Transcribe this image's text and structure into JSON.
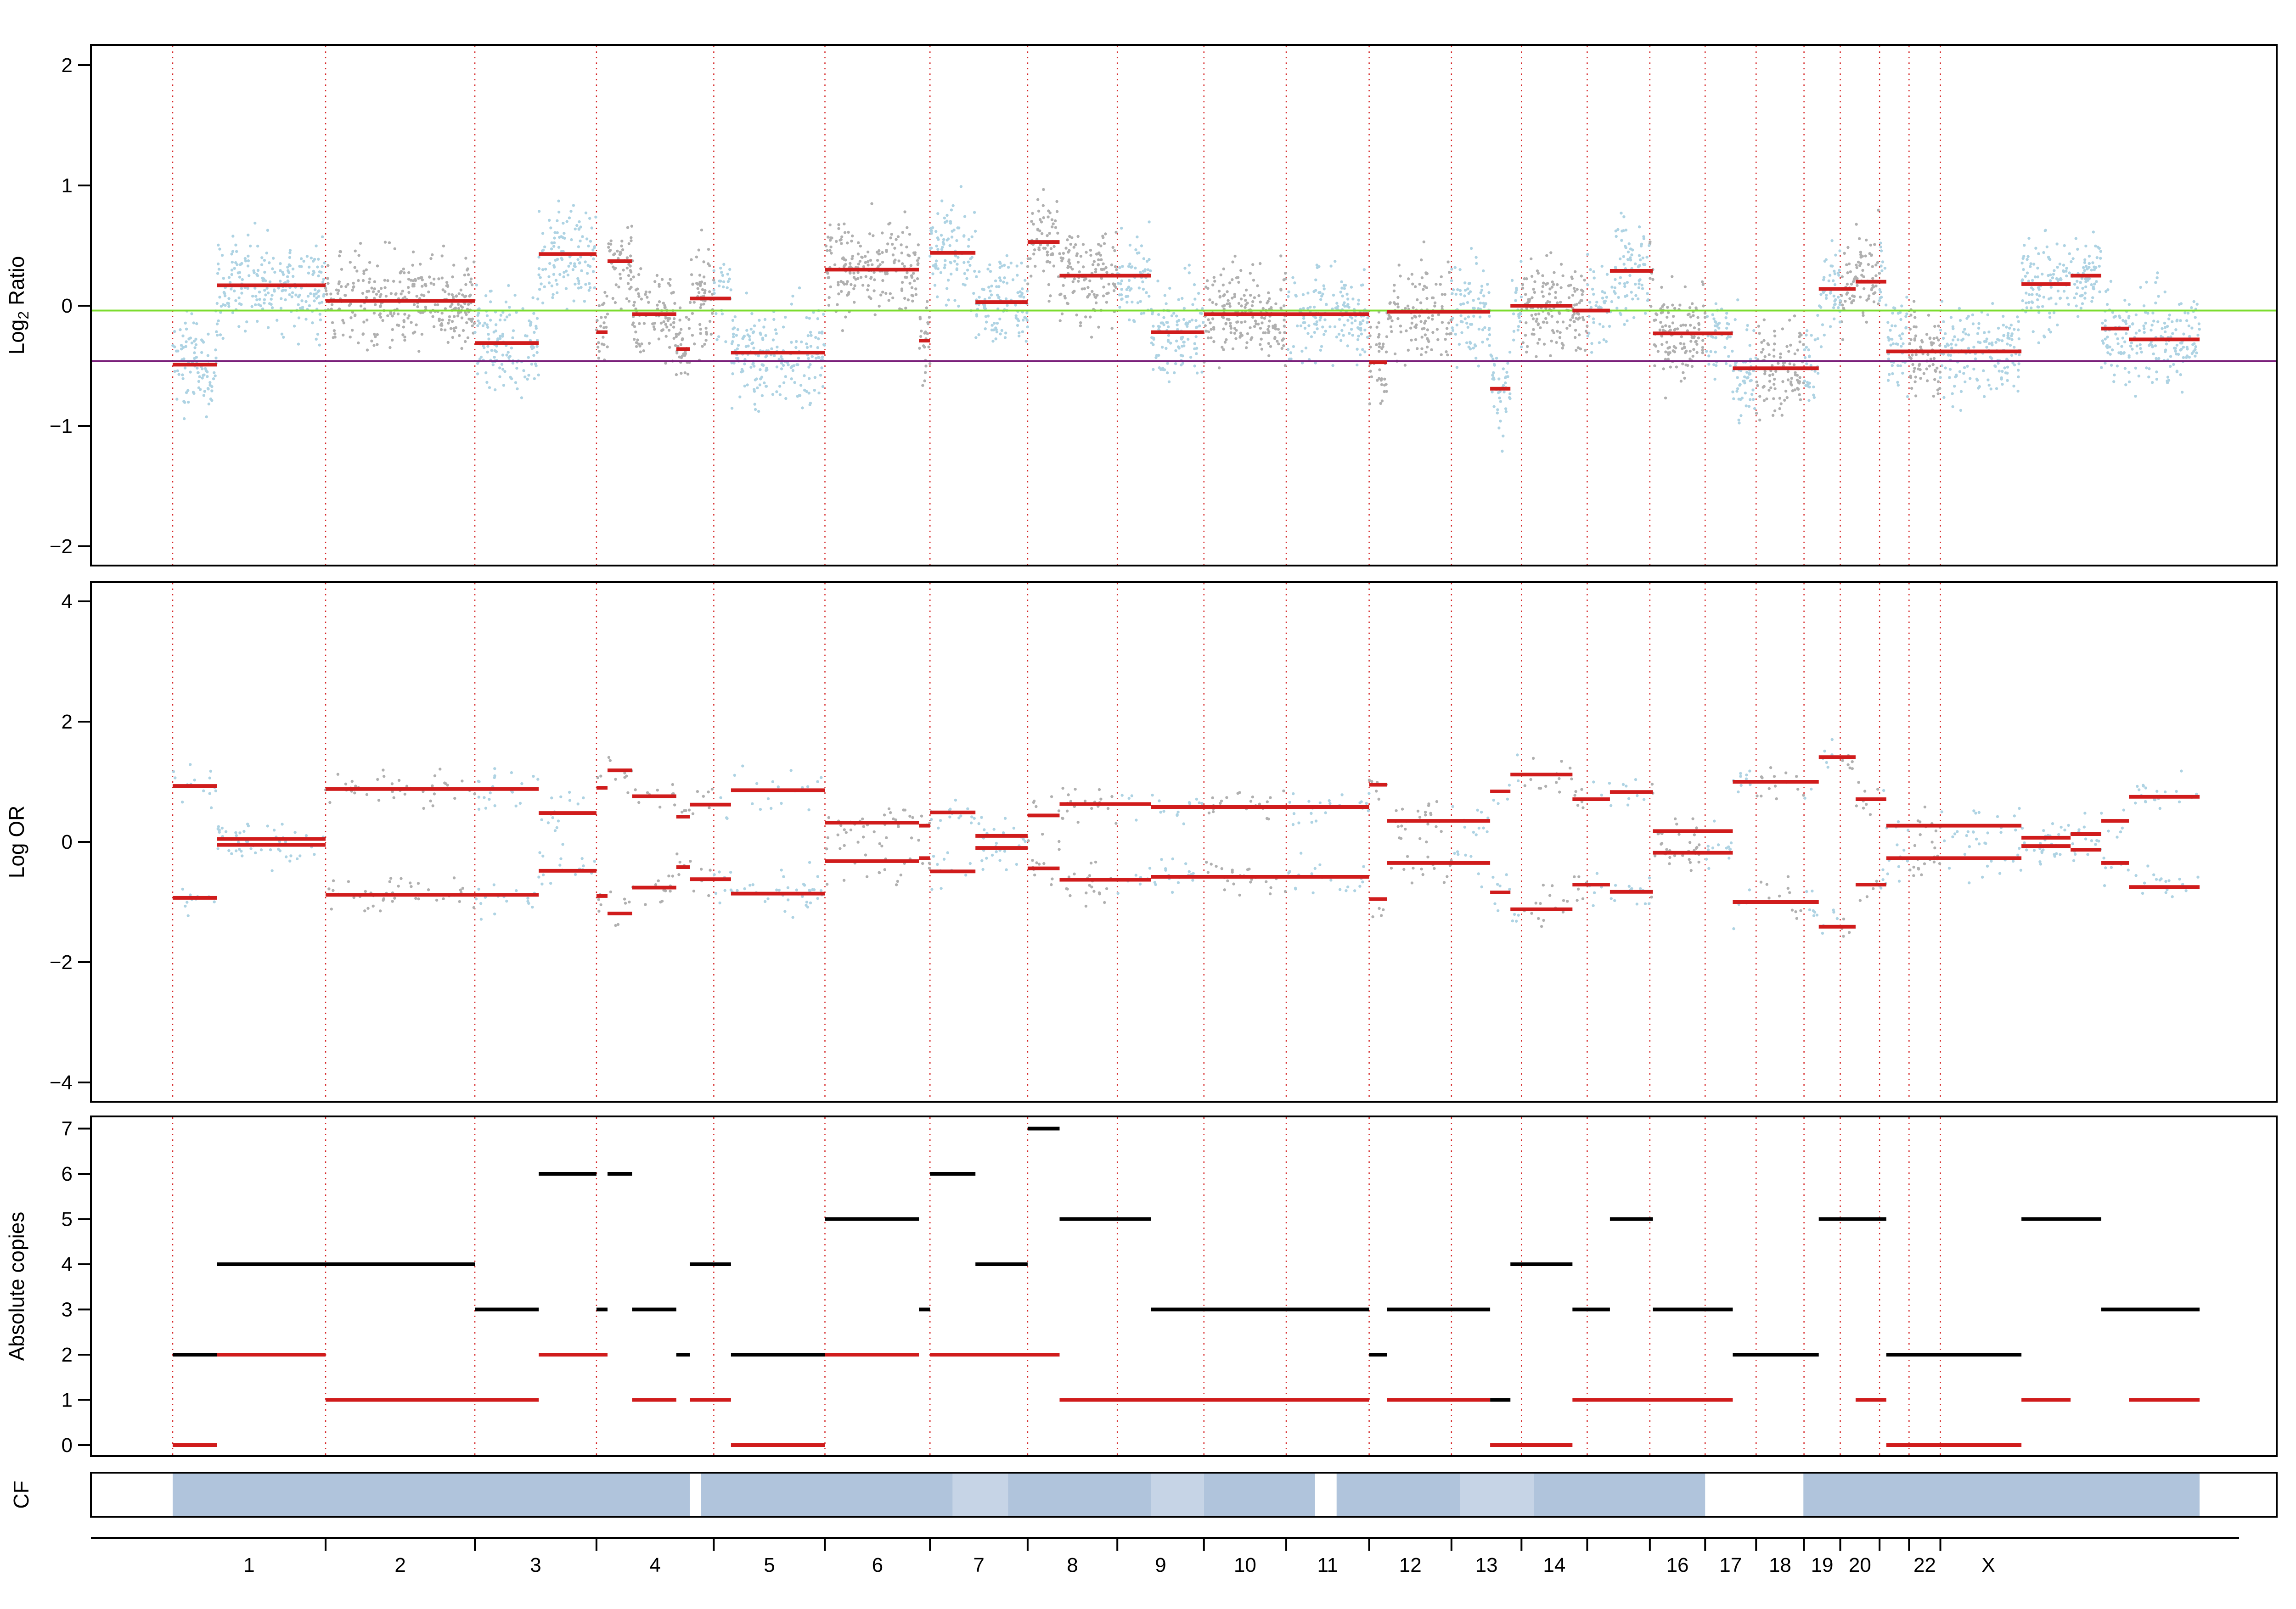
{
  "colors": {
    "point_even": "#aed3e3",
    "point_odd": "#b0b0b0",
    "segment": "#d01c1c",
    "copy_total": "#000000",
    "copy_minor": "#d01c1c",
    "purity_line": "#7cdc2e",
    "ploidy_line": "#7a1f7a",
    "cf_dark": "#b0c4dc",
    "cf_light": "#c6d4e6",
    "boundary": "#d62728"
  },
  "panels": [
    {
      "name": "Log2 Ratio",
      "ylabel_main": "Log",
      "ylabel_sub": "2",
      "ylabel_rest": " Ratio",
      "ylim": [
        -2.1,
        2.1
      ],
      "yticks": [
        "−2",
        "−1",
        "0",
        "1",
        "2"
      ]
    },
    {
      "name": "Log OR",
      "ylabel": "Log OR",
      "ylim": [
        -4.2,
        4.2
      ],
      "yticks": [
        "−4",
        "−2",
        "0",
        "2",
        "4"
      ]
    },
    {
      "name": "Absolute copies",
      "ylabel": "Absolute copies",
      "ylim": [
        -0.3,
        7.3
      ],
      "yticks": [
        "0",
        "1",
        "2",
        "3",
        "4",
        "5",
        "6",
        "7"
      ]
    },
    {
      "name": "CF",
      "ylabel": "CF"
    }
  ],
  "chart_data": {
    "type": "scatter",
    "x_unit": "chromosome position (Mb)",
    "chromosomes": [
      {
        "chrom": "1",
        "label": "1",
        "start": 0,
        "end": 249
      },
      {
        "chrom": "2",
        "label": "2",
        "start": 249,
        "end": 492
      },
      {
        "chrom": "3",
        "label": "3",
        "start": 492,
        "end": 690
      },
      {
        "chrom": "4",
        "label": "4",
        "start": 690,
        "end": 881
      },
      {
        "chrom": "5",
        "label": "5",
        "start": 881,
        "end": 1062
      },
      {
        "chrom": "6",
        "label": "6",
        "start": 1062,
        "end": 1233
      },
      {
        "chrom": "7",
        "label": "7",
        "start": 1233,
        "end": 1392
      },
      {
        "chrom": "8",
        "label": "8",
        "start": 1392,
        "end": 1538
      },
      {
        "chrom": "9",
        "label": "9",
        "start": 1538,
        "end": 1679
      },
      {
        "chrom": "10",
        "label": "10",
        "start": 1679,
        "end": 1813
      },
      {
        "chrom": "11",
        "label": "11",
        "start": 1813,
        "end": 1948
      },
      {
        "chrom": "12",
        "label": "12",
        "start": 1948,
        "end": 2082
      },
      {
        "chrom": "13",
        "label": "13",
        "start": 2082,
        "end": 2196
      },
      {
        "chrom": "14",
        "label": "14",
        "start": 2196,
        "end": 2303
      },
      {
        "chrom": "15",
        "label": "",
        "start": 2303,
        "end": 2405
      },
      {
        "chrom": "16",
        "label": "16",
        "start": 2405,
        "end": 2495
      },
      {
        "chrom": "17",
        "label": "17",
        "start": 2495,
        "end": 2578
      },
      {
        "chrom": "18",
        "label": "18",
        "start": 2578,
        "end": 2656
      },
      {
        "chrom": "19",
        "label": "19",
        "start": 2656,
        "end": 2715
      },
      {
        "chrom": "20",
        "label": "20",
        "start": 2715,
        "end": 2779
      },
      {
        "chrom": "21",
        "label": "",
        "start": 2779,
        "end": 2827
      },
      {
        "chrom": "22",
        "label": "22",
        "start": 2827,
        "end": 2878
      },
      {
        "chrom": "X",
        "label": "X",
        "start": 2878,
        "end": 3034
      }
    ],
    "log2_ratio": {
      "purity_line": -0.04,
      "ploidy_line": -0.46,
      "segments": [
        {
          "start": 0,
          "end": 72,
          "y": -0.49
        },
        {
          "start": 72,
          "end": 249,
          "y": 0.17
        },
        {
          "start": 249,
          "end": 492,
          "y": 0.04
        },
        {
          "start": 492,
          "end": 596,
          "y": -0.31
        },
        {
          "start": 596,
          "end": 690,
          "y": 0.43
        },
        {
          "start": 690,
          "end": 708,
          "y": -0.22
        },
        {
          "start": 708,
          "end": 748,
          "y": 0.37
        },
        {
          "start": 748,
          "end": 820,
          "y": -0.07
        },
        {
          "start": 820,
          "end": 842,
          "y": -0.36
        },
        {
          "start": 842,
          "end": 909,
          "y": 0.06
        },
        {
          "start": 909,
          "end": 1062,
          "y": -0.39
        },
        {
          "start": 1062,
          "end": 1215,
          "y": 0.3
        },
        {
          "start": 1215,
          "end": 1233,
          "y": -0.29
        },
        {
          "start": 1233,
          "end": 1307,
          "y": 0.44
        },
        {
          "start": 1307,
          "end": 1392,
          "y": 0.03
        },
        {
          "start": 1392,
          "end": 1444,
          "y": 0.53
        },
        {
          "start": 1444,
          "end": 1593,
          "y": 0.25
        },
        {
          "start": 1593,
          "end": 1679,
          "y": -0.22
        },
        {
          "start": 1679,
          "end": 1948,
          "y": -0.07
        },
        {
          "start": 1948,
          "end": 1977,
          "y": -0.47
        },
        {
          "start": 1977,
          "end": 2145,
          "y": -0.05
        },
        {
          "start": 2145,
          "end": 2178,
          "y": -0.69
        },
        {
          "start": 2178,
          "end": 2279,
          "y": 0.0
        },
        {
          "start": 2279,
          "end": 2340,
          "y": -0.04
        },
        {
          "start": 2340,
          "end": 2410,
          "y": 0.29
        },
        {
          "start": 2410,
          "end": 2540,
          "y": -0.23
        },
        {
          "start": 2540,
          "end": 2680,
          "y": -0.52
        },
        {
          "start": 2680,
          "end": 2740,
          "y": 0.14
        },
        {
          "start": 2740,
          "end": 2790,
          "y": 0.2
        },
        {
          "start": 2790,
          "end": 3010,
          "y": -0.38
        },
        {
          "start": 3010,
          "end": 3090,
          "y": 0.18
        },
        {
          "start": 3090,
          "end": 3140,
          "y": 0.25
        },
        {
          "start": 3140,
          "end": 3185,
          "y": -0.19
        },
        {
          "start": 3185,
          "end": 3300,
          "y": -0.28
        }
      ]
    },
    "log_or": {
      "segments": [
        {
          "start": 0,
          "end": 72,
          "y": 0.93
        },
        {
          "start": 72,
          "end": 249,
          "y": 0.05
        },
        {
          "start": 249,
          "end": 596,
          "y": 0.88
        },
        {
          "start": 596,
          "end": 690,
          "y": 0.48
        },
        {
          "start": 690,
          "end": 708,
          "y": 0.9
        },
        {
          "start": 708,
          "end": 748,
          "y": 1.19
        },
        {
          "start": 748,
          "end": 820,
          "y": 0.76
        },
        {
          "start": 820,
          "end": 842,
          "y": 0.42
        },
        {
          "start": 842,
          "end": 909,
          "y": 0.62
        },
        {
          "start": 909,
          "end": 1062,
          "y": 0.86
        },
        {
          "start": 1062,
          "end": 1215,
          "y": 0.32
        },
        {
          "start": 1215,
          "end": 1233,
          "y": 0.27
        },
        {
          "start": 1233,
          "end": 1307,
          "y": 0.49
        },
        {
          "start": 1307,
          "end": 1392,
          "y": 0.1
        },
        {
          "start": 1392,
          "end": 1444,
          "y": 0.44
        },
        {
          "start": 1444,
          "end": 1593,
          "y": 0.63
        },
        {
          "start": 1593,
          "end": 1948,
          "y": 0.58
        },
        {
          "start": 1948,
          "end": 1977,
          "y": 0.95
        },
        {
          "start": 1977,
          "end": 2145,
          "y": 0.35
        },
        {
          "start": 2145,
          "end": 2178,
          "y": 0.84
        },
        {
          "start": 2178,
          "end": 2279,
          "y": 1.12
        },
        {
          "start": 2279,
          "end": 2340,
          "y": 0.71
        },
        {
          "start": 2340,
          "end": 2410,
          "y": 0.83
        },
        {
          "start": 2410,
          "end": 2540,
          "y": 0.18
        },
        {
          "start": 2540,
          "end": 2680,
          "y": 1.0
        },
        {
          "start": 2680,
          "end": 2740,
          "y": 1.41
        },
        {
          "start": 2740,
          "end": 2790,
          "y": 0.71
        },
        {
          "start": 2790,
          "end": 3010,
          "y": 0.27
        },
        {
          "start": 3010,
          "end": 3090,
          "y": 0.07
        },
        {
          "start": 3090,
          "end": 3140,
          "y": 0.13
        },
        {
          "start": 3140,
          "end": 3185,
          "y": 0.35
        },
        {
          "start": 3185,
          "end": 3300,
          "y": 0.75
        }
      ]
    },
    "absolute_copies": {
      "total": [
        {
          "start": 0,
          "end": 72,
          "y": 2
        },
        {
          "start": 72,
          "end": 492,
          "y": 4
        },
        {
          "start": 492,
          "end": 596,
          "y": 3
        },
        {
          "start": 596,
          "end": 690,
          "y": 6
        },
        {
          "start": 690,
          "end": 708,
          "y": 3
        },
        {
          "start": 708,
          "end": 748,
          "y": 6
        },
        {
          "start": 748,
          "end": 820,
          "y": 3
        },
        {
          "start": 820,
          "end": 842,
          "y": 2
        },
        {
          "start": 842,
          "end": 909,
          "y": 4
        },
        {
          "start": 909,
          "end": 1062,
          "y": 2
        },
        {
          "start": 1062,
          "end": 1215,
          "y": 5
        },
        {
          "start": 1215,
          "end": 1233,
          "y": 3
        },
        {
          "start": 1233,
          "end": 1307,
          "y": 6
        },
        {
          "start": 1307,
          "end": 1392,
          "y": 4
        },
        {
          "start": 1392,
          "end": 1444,
          "y": 7
        },
        {
          "start": 1444,
          "end": 1593,
          "y": 5
        },
        {
          "start": 1593,
          "end": 1948,
          "y": 3
        },
        {
          "start": 1948,
          "end": 1977,
          "y": 2
        },
        {
          "start": 1977,
          "end": 2145,
          "y": 3
        },
        {
          "start": 2145,
          "end": 2178,
          "y": 1
        },
        {
          "start": 2178,
          "end": 2279,
          "y": 4
        },
        {
          "start": 2279,
          "end": 2340,
          "y": 3
        },
        {
          "start": 2340,
          "end": 2410,
          "y": 5
        },
        {
          "start": 2410,
          "end": 2540,
          "y": 3
        },
        {
          "start": 2540,
          "end": 2680,
          "y": 2
        },
        {
          "start": 2680,
          "end": 2790,
          "y": 5
        },
        {
          "start": 2790,
          "end": 3010,
          "y": 2
        },
        {
          "start": 3010,
          "end": 3140,
          "y": 5
        },
        {
          "start": 3140,
          "end": 3300,
          "y": 3
        }
      ],
      "minor": [
        {
          "start": 0,
          "end": 72,
          "y": 0
        },
        {
          "start": 72,
          "end": 249,
          "y": 2
        },
        {
          "start": 249,
          "end": 596,
          "y": 1
        },
        {
          "start": 596,
          "end": 708,
          "y": 2
        },
        {
          "start": 748,
          "end": 820,
          "y": 1
        },
        {
          "start": 842,
          "end": 909,
          "y": 1
        },
        {
          "start": 909,
          "end": 1062,
          "y": 0
        },
        {
          "start": 1062,
          "end": 1215,
          "y": 2
        },
        {
          "start": 1233,
          "end": 1444,
          "y": 2
        },
        {
          "start": 1444,
          "end": 1948,
          "y": 1
        },
        {
          "start": 1977,
          "end": 2145,
          "y": 1
        },
        {
          "start": 2145,
          "end": 2279,
          "y": 0
        },
        {
          "start": 2279,
          "end": 2540,
          "y": 1
        },
        {
          "start": 2740,
          "end": 2790,
          "y": 1
        },
        {
          "start": 2790,
          "end": 3010,
          "y": 0
        },
        {
          "start": 3010,
          "end": 3090,
          "y": 1
        },
        {
          "start": 3185,
          "end": 3300,
          "y": 1
        }
      ]
    },
    "cellular_fraction": [
      {
        "start": 0,
        "end": 842,
        "shade": "dark"
      },
      {
        "start": 860,
        "end": 1270,
        "shade": "dark"
      },
      {
        "start": 1270,
        "end": 1360,
        "shade": "light"
      },
      {
        "start": 1360,
        "end": 1593,
        "shade": "dark"
      },
      {
        "start": 1593,
        "end": 1679,
        "shade": "light"
      },
      {
        "start": 1679,
        "end": 1860,
        "shade": "dark"
      },
      {
        "start": 1895,
        "end": 2096,
        "shade": "dark"
      },
      {
        "start": 2096,
        "end": 2216,
        "shade": "light"
      },
      {
        "start": 2216,
        "end": 2495,
        "shade": "dark"
      },
      {
        "start": 2655,
        "end": 3300,
        "shade": "dark"
      }
    ]
  }
}
